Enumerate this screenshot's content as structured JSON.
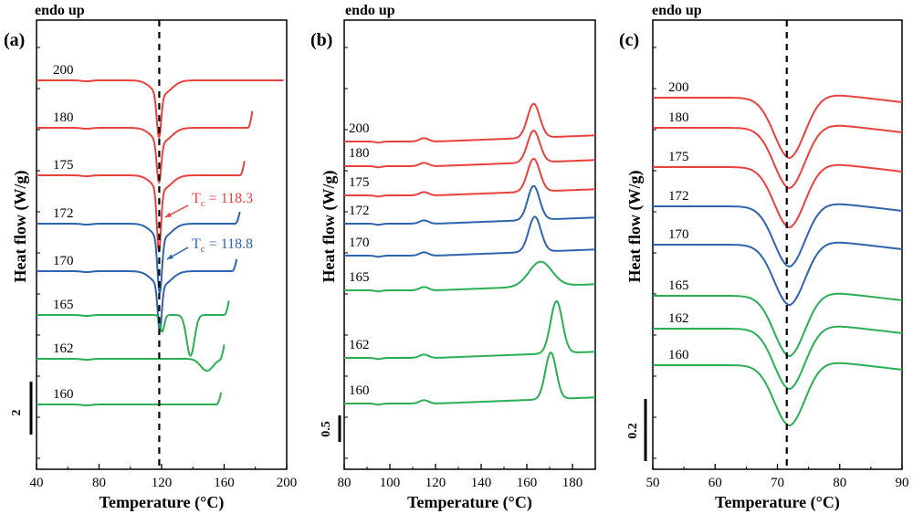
{
  "chart_data": [
    {
      "type": "line",
      "panel_label": "(a)",
      "header": "endo up",
      "xlabel": "Temperature (°C)",
      "ylabel": "Heat flow (W/g)",
      "xlim": [
        40,
        200
      ],
      "xticks": [
        "40",
        "80",
        "120",
        "160",
        "200"
      ],
      "scale_bar_label": "2",
      "dashed_line_x": 118.5,
      "annotations": [
        {
          "text": "T",
          "sub": "c",
          "value": " = 118.3",
          "color": "#e8423f"
        },
        {
          "text": "T",
          "sub": "c",
          "value": " = 118.8",
          "color": "#2f64ad"
        }
      ],
      "series": [
        {
          "name": "200",
          "color": "#e8423f",
          "baseline": 0.2,
          "end_x": 198,
          "end_rise": 0.0,
          "peaks": [
            [
              72,
              -0.02,
              3
            ],
            [
              118.3,
              -0.9,
              1.4
            ],
            [
              120,
              -0.3,
              6
            ]
          ]
        },
        {
          "name": "180",
          "color": "#e8423f",
          "baseline": 1.2,
          "end_x": 178,
          "end_rise": 0.35,
          "peaks": [
            [
              72,
              -0.02,
              3
            ],
            [
              118.3,
              -0.85,
              1.4
            ],
            [
              120,
              -0.3,
              6
            ]
          ]
        },
        {
          "name": "175",
          "color": "#e8423f",
          "baseline": 2.25,
          "end_x": 173,
          "end_rise": 0.3,
          "peaks": [
            [
              72,
              -0.02,
              3
            ],
            [
              118.3,
              -1.3,
              1.3
            ],
            [
              120,
              -0.3,
              6
            ]
          ]
        },
        {
          "name": "172",
          "color": "#2f64ad",
          "baseline": 3.25,
          "end_x": 170,
          "end_rise": 0.25,
          "peaks": [
            [
              72,
              -0.02,
              3
            ],
            [
              118.8,
              -1.15,
              1.4
            ],
            [
              120,
              -0.3,
              6
            ]
          ]
        },
        {
          "name": "170",
          "color": "#2f64ad",
          "baseline": 4.3,
          "end_x": 168,
          "end_rise": 0.25,
          "peaks": [
            [
              72,
              -0.02,
              3
            ],
            [
              118.8,
              -0.95,
              1.3
            ],
            [
              120,
              -0.3,
              6
            ]
          ]
        },
        {
          "name": "165",
          "color": "#2bae56",
          "baseline": 5.3,
          "end_x": 163,
          "end_rise": 0.3,
          "peaks": [
            [
              72,
              -0.02,
              3
            ],
            [
              120.3,
              -0.35,
              1.4
            ],
            [
              138.5,
              -0.85,
              2.5
            ]
          ]
        },
        {
          "name": "162",
          "color": "#2bae56",
          "baseline": 6.3,
          "end_x": 160,
          "end_rise": 0.3,
          "peaks": [
            [
              72,
              -0.02,
              3
            ],
            [
              149,
              -0.25,
              4
            ]
          ]
        },
        {
          "name": "160",
          "color": "#2bae56",
          "baseline": 7.35,
          "end_x": 158,
          "end_rise": 0.25,
          "peaks": [
            [
              72,
              -0.02,
              3
            ]
          ]
        }
      ]
    },
    {
      "type": "line",
      "panel_label": "(b)",
      "header": "endo up",
      "xlabel": "Temperature (°C)",
      "ylabel": "Heat flow (W/g)",
      "xlim": [
        80,
        190
      ],
      "xticks": [
        "80",
        "100",
        "120",
        "140",
        "160",
        "180"
      ],
      "scale_bar_label": "0.5",
      "series": [
        {
          "name": "200",
          "color": "#e8423f",
          "baseline": 0.2,
          "peaks": [
            [
              95,
              -0.02,
              1.5
            ],
            [
              115,
              0.06,
              2
            ],
            [
              163,
              0.62,
              2.7
            ]
          ]
        },
        {
          "name": "180",
          "color": "#e8423f",
          "baseline": 0.45,
          "peaks": [
            [
              95,
              -0.02,
              1.5
            ],
            [
              115,
              0.06,
              2
            ],
            [
              163,
              0.58,
              2.7
            ]
          ]
        },
        {
          "name": "175",
          "color": "#e8423f",
          "baseline": 0.7,
          "peaks": [
            [
              95,
              -0.02,
              1.5
            ],
            [
              115,
              0.06,
              2
            ],
            [
              163,
              0.6,
              2.7
            ]
          ]
        },
        {
          "name": "172",
          "color": "#2f64ad",
          "baseline": 0.95,
          "peaks": [
            [
              95,
              -0.02,
              1.5
            ],
            [
              115,
              0.06,
              2
            ],
            [
              163,
              0.62,
              2.6
            ]
          ]
        },
        {
          "name": "170",
          "color": "#2f64ad",
          "baseline": 1.25,
          "peaks": [
            [
              95,
              -0.02,
              1.5
            ],
            [
              115,
              0.06,
              2
            ],
            [
              163.5,
              0.64,
              2.7
            ]
          ]
        },
        {
          "name": "165",
          "color": "#2bae56",
          "baseline": 1.55,
          "peaks": [
            [
              95,
              -0.02,
              1.5
            ],
            [
              115,
              0.06,
              2
            ],
            [
              166,
              0.45,
              5
            ]
          ]
        },
        {
          "name": "162",
          "color": "#2bae56",
          "baseline": 2.05,
          "peaks": [
            [
              95,
              -0.02,
              1.5
            ],
            [
              115,
              0.06,
              2
            ],
            [
              173,
              0.95,
              2.6
            ]
          ]
        },
        {
          "name": "160",
          "color": "#2bae56",
          "baseline": 2.15,
          "peaks": [
            [
              95,
              -0.02,
              1.5
            ],
            [
              115,
              0.06,
              2
            ],
            [
              170.5,
              0.85,
              2.4
            ]
          ]
        }
      ]
    },
    {
      "type": "line",
      "panel_label": "(c)",
      "header": "endo up",
      "xlabel": "Temperature (°C)",
      "ylabel": "Heat flow (W/g)",
      "xlim": [
        50,
        90
      ],
      "xticks": [
        "50",
        "60",
        "70",
        "80",
        "90"
      ],
      "scale_bar_label": "0.2",
      "dashed_line_x": 71.5,
      "series": [
        {
          "name": "200",
          "color": "#e8423f",
          "baseline": 0.1,
          "peaks": [
            [
              72,
              -0.2,
              2.5
            ]
          ]
        },
        {
          "name": "180",
          "color": "#e8423f",
          "baseline": 0.2,
          "peaks": [
            [
              72,
              -0.2,
              2.5
            ]
          ]
        },
        {
          "name": "175",
          "color": "#e8423f",
          "baseline": 0.3,
          "peaks": [
            [
              72,
              -0.2,
              2.5
            ]
          ]
        },
        {
          "name": "172",
          "color": "#2f64ad",
          "baseline": 0.42,
          "peaks": [
            [
              72,
              -0.2,
              2.5
            ]
          ]
        },
        {
          "name": "170",
          "color": "#2f64ad",
          "baseline": 0.53,
          "peaks": [
            [
              72,
              -0.2,
              2.5
            ]
          ]
        },
        {
          "name": "165",
          "color": "#2bae56",
          "baseline": 0.66,
          "peaks": [
            [
              72,
              -0.2,
              2.5
            ]
          ]
        },
        {
          "name": "162",
          "color": "#2bae56",
          "baseline": 0.77,
          "peaks": [
            [
              72,
              -0.2,
              2.5
            ]
          ]
        },
        {
          "name": "160",
          "color": "#2bae56",
          "baseline": 0.86,
          "peaks": [
            [
              72,
              -0.2,
              2.5
            ]
          ]
        }
      ]
    }
  ]
}
